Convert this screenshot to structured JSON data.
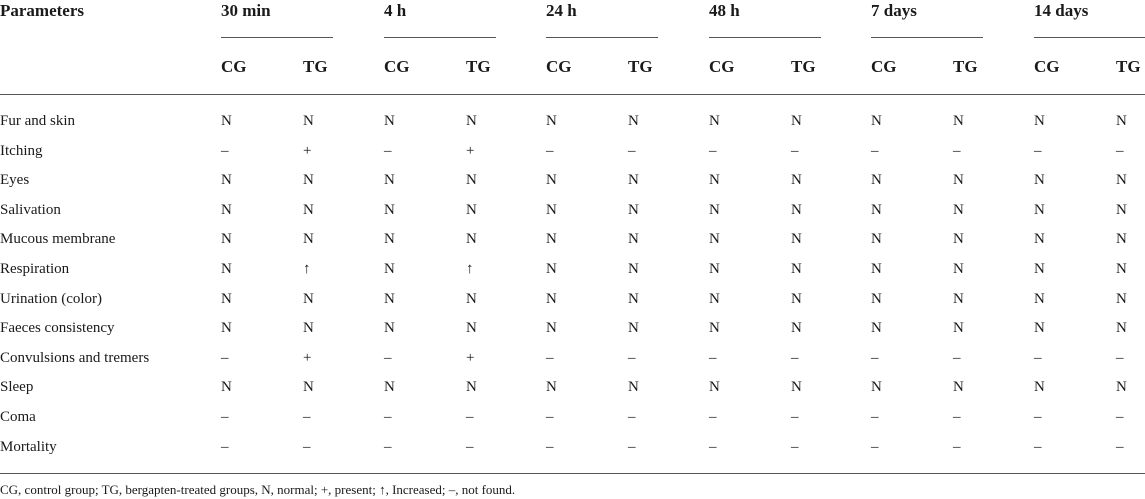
{
  "table": {
    "param_header": "Parameters",
    "time_groups": [
      "30 min",
      "4 h",
      "24 h",
      "48 h",
      "7 days",
      "14 days"
    ],
    "sub_headers": [
      "CG",
      "TG"
    ],
    "rows": [
      {
        "label": "Fur and skin",
        "values": [
          "N",
          "N",
          "N",
          "N",
          "N",
          "N",
          "N",
          "N",
          "N",
          "N",
          "N",
          "N"
        ]
      },
      {
        "label": "Itching",
        "values": [
          "–",
          "+",
          "–",
          "+",
          "–",
          "–",
          "–",
          "–",
          "–",
          "–",
          "–",
          "–"
        ]
      },
      {
        "label": "Eyes",
        "values": [
          "N",
          "N",
          "N",
          "N",
          "N",
          "N",
          "N",
          "N",
          "N",
          "N",
          "N",
          "N"
        ]
      },
      {
        "label": "Salivation",
        "values": [
          "N",
          "N",
          "N",
          "N",
          "N",
          "N",
          "N",
          "N",
          "N",
          "N",
          "N",
          "N"
        ]
      },
      {
        "label": "Mucous membrane",
        "values": [
          "N",
          "N",
          "N",
          "N",
          "N",
          "N",
          "N",
          "N",
          "N",
          "N",
          "N",
          "N"
        ]
      },
      {
        "label": "Respiration",
        "values": [
          "N",
          "↑",
          "N",
          "↑",
          "N",
          "N",
          "N",
          "N",
          "N",
          "N",
          "N",
          "N"
        ]
      },
      {
        "label": "Urination (color)",
        "values": [
          "N",
          "N",
          "N",
          "N",
          "N",
          "N",
          "N",
          "N",
          "N",
          "N",
          "N",
          "N"
        ]
      },
      {
        "label": "Faeces consistency",
        "values": [
          "N",
          "N",
          "N",
          "N",
          "N",
          "N",
          "N",
          "N",
          "N",
          "N",
          "N",
          "N"
        ]
      },
      {
        "label": "Convulsions and tremers",
        "values": [
          "–",
          "+",
          "–",
          "+",
          "–",
          "–",
          "–",
          "–",
          "–",
          "–",
          "–",
          "–"
        ]
      },
      {
        "label": "Sleep",
        "values": [
          "N",
          "N",
          "N",
          "N",
          "N",
          "N",
          "N",
          "N",
          "N",
          "N",
          "N",
          "N"
        ]
      },
      {
        "label": "Coma",
        "values": [
          "–",
          "–",
          "–",
          "–",
          "–",
          "–",
          "–",
          "–",
          "–",
          "–",
          "–",
          "–"
        ]
      },
      {
        "label": "Mortality",
        "values": [
          "–",
          "–",
          "–",
          "–",
          "–",
          "–",
          "–",
          "–",
          "–",
          "–",
          "–",
          "–"
        ]
      }
    ]
  },
  "footnote": "CG, control group; TG, bergapten-treated groups, N, normal; +, present; ↑, Increased; –, not found."
}
